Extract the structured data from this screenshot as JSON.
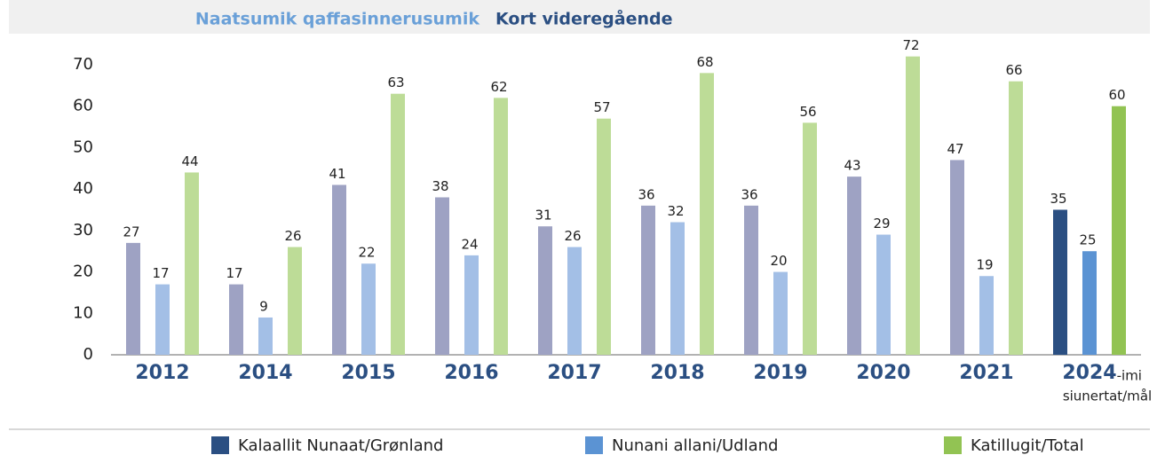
{
  "chart_data": {
    "type": "bar",
    "title": "Naatsumik qaffasinnerusumik",
    "subtitle": "Kort videregående",
    "categories": [
      "2012",
      "2014",
      "2015",
      "2016",
      "2017",
      "2018",
      "2019",
      "2020",
      "2021",
      "2024"
    ],
    "target_suffix": "-imi",
    "target_note": "siunertat/mål",
    "series": [
      {
        "name": "Kalaallit Nunaat/Grønland",
        "color": "#2b4f82",
        "past_color": "#9ea2c3",
        "values": [
          27,
          17,
          41,
          38,
          31,
          36,
          36,
          43,
          47,
          35
        ]
      },
      {
        "name": "Nunani allani/Udland",
        "color": "#5b93d3",
        "past_color": "#a3bfe6",
        "values": [
          17,
          9,
          22,
          24,
          26,
          32,
          20,
          29,
          19,
          25
        ]
      },
      {
        "name": "Katillugit/Total",
        "color": "#92c353",
        "past_color": "#bddc97",
        "values": [
          44,
          26,
          63,
          62,
          57,
          68,
          56,
          72,
          66,
          60
        ]
      }
    ],
    "ylim": [
      0,
      70
    ],
    "yticks": [
      0,
      10,
      20,
      30,
      40,
      50,
      60,
      70
    ],
    "grid": false
  }
}
